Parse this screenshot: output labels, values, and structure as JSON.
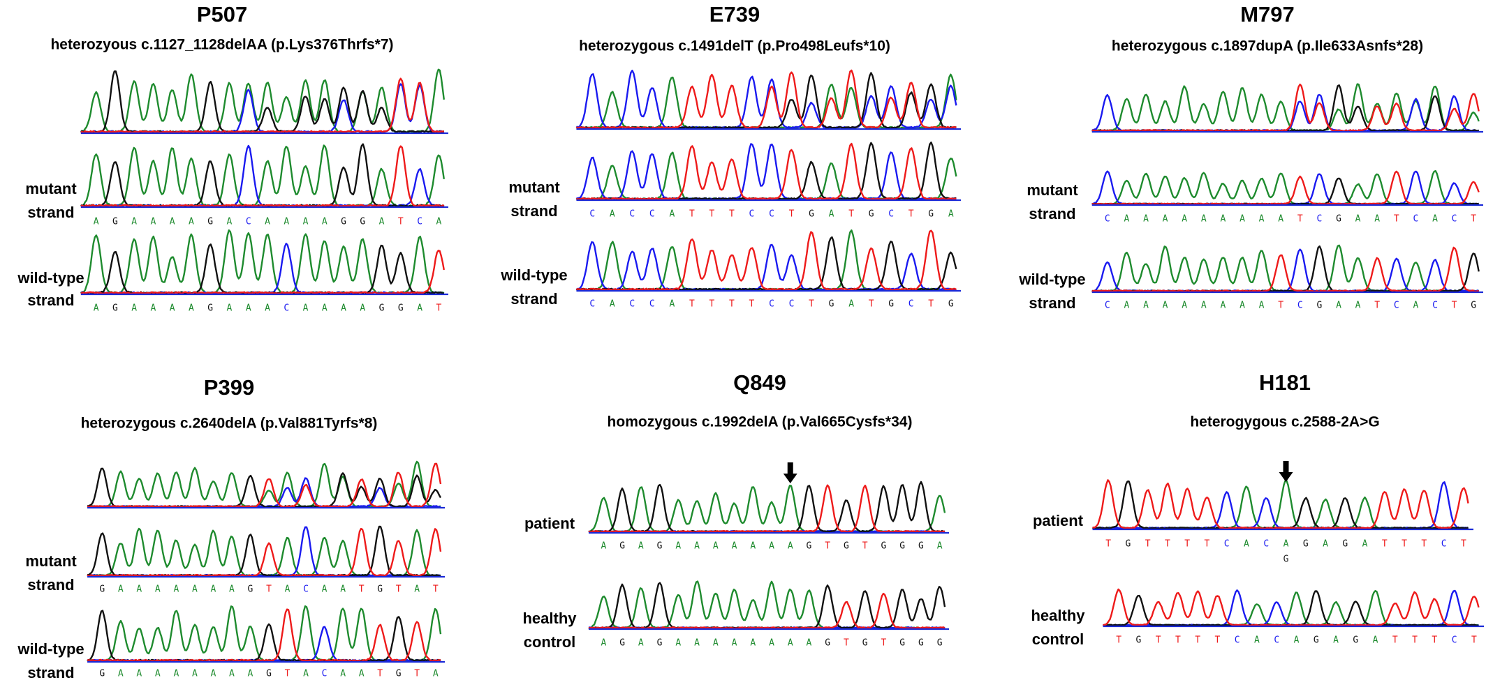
{
  "colors": {
    "A": "#1e8b2e",
    "C": "#1a1af0",
    "G": "#111111",
    "T": "#ee1a1a",
    "baseline": "#1a2ad8"
  },
  "panels": [
    {
      "title": "P507",
      "subtitle": "heterozyous c.1127_1128delAA (p.Lys376Thrfs*7)",
      "tracks": [
        {
          "label1": "",
          "label2": "",
          "seq": "AGAAAAGACAAAAGGATCA",
          "mixed_from": 8,
          "show_bases": false,
          "arrow_index": null,
          "alt_base": ""
        },
        {
          "label1": "mutant",
          "label2": "strand",
          "seq": "AGAAAAGACAAAAGGATCA",
          "mixed_from": null,
          "show_bases": true,
          "arrow_index": null,
          "alt_base": ""
        },
        {
          "label1": "wild-type",
          "label2": "strand",
          "seq": "AGAAAAGAAACAAAAGGAT",
          "mixed_from": null,
          "show_bases": true,
          "arrow_index": null,
          "alt_base": ""
        }
      ]
    },
    {
      "title": "E739",
      "subtitle": "heterozygous c.1491delT (p.Pro498Leufs*10)",
      "tracks": [
        {
          "label1": "",
          "label2": "",
          "seq": "CACCATTTCCTGATGCTGA",
          "mixed_from": 9,
          "show_bases": false,
          "arrow_index": null,
          "alt_base": ""
        },
        {
          "label1": "mutant",
          "label2": "strand",
          "seq": "CACCATTTCCTGATGCTGA",
          "mixed_from": null,
          "show_bases": true,
          "arrow_index": null,
          "alt_base": ""
        },
        {
          "label1": "wild-type",
          "label2": "strand",
          "seq": "CACCATTTTCCTGATGCTG",
          "mixed_from": null,
          "show_bases": true,
          "arrow_index": null,
          "alt_base": ""
        }
      ]
    },
    {
      "title": "M797",
      "subtitle": "heterozygous c.1897dupA (p.Ile633Asnfs*28)",
      "tracks": [
        {
          "label1": "",
          "label2": "",
          "seq": "CAAAAAAAAATCGAATCACT",
          "mixed_from": 10,
          "show_bases": false,
          "arrow_index": null,
          "alt_base": ""
        },
        {
          "label1": "mutant",
          "label2": "strand",
          "seq": "CAAAAAAAAATCGAATCACT",
          "mixed_from": null,
          "show_bases": true,
          "arrow_index": null,
          "alt_base": ""
        },
        {
          "label1": "wild-type",
          "label2": "strand",
          "seq": "CAAAAAAAATCGAATCACTG",
          "mixed_from": null,
          "show_bases": true,
          "arrow_index": null,
          "alt_base": ""
        }
      ]
    },
    {
      "title": "P399",
      "subtitle": "heterozygous c.2640delA (p.Val881Tyrfs*8)",
      "tracks": [
        {
          "label1": "",
          "label2": "",
          "seq": "GAAAAAAAGTACAATGTAT",
          "mixed_from": 9,
          "show_bases": false,
          "arrow_index": null,
          "alt_base": ""
        },
        {
          "label1": "mutant",
          "label2": "strand",
          "seq": "GAAAAAAAGTACAATGTAT",
          "mixed_from": null,
          "show_bases": true,
          "arrow_index": null,
          "alt_base": ""
        },
        {
          "label1": "wild-type",
          "label2": "strand",
          "seq": "GAAAAAAAAGTACAATGTA",
          "mixed_from": null,
          "show_bases": true,
          "arrow_index": null,
          "alt_base": ""
        }
      ]
    },
    {
      "title": "Q849",
      "subtitle": "homozygous c.1992delA (p.Val665Cysfs*34)",
      "tracks": [
        {
          "label1": "patient",
          "label2": "",
          "seq": "AGAGAAAAAAAGTGTGGGA",
          "mixed_from": null,
          "show_bases": true,
          "arrow_index": 10,
          "alt_base": ""
        },
        {
          "label1": "healthy",
          "label2": "control",
          "seq": "AGAGAAAAAAAAGTGTGGG",
          "mixed_from": null,
          "show_bases": true,
          "arrow_index": null,
          "alt_base": ""
        }
      ]
    },
    {
      "title": "H181",
      "subtitle": "heterogygous c.2588-2A>G",
      "tracks": [
        {
          "label1": "patient",
          "label2": "",
          "seq": "TGTTTTCACAGAGATTTCT",
          "mixed_from": null,
          "show_bases": true,
          "arrow_index": 9,
          "alt_base": "G"
        },
        {
          "label1": "healthy",
          "label2": "control",
          "seq": "TGTTTTCACAGAGATTTCT",
          "mixed_from": null,
          "show_bases": true,
          "arrow_index": null,
          "alt_base": ""
        }
      ]
    }
  ]
}
